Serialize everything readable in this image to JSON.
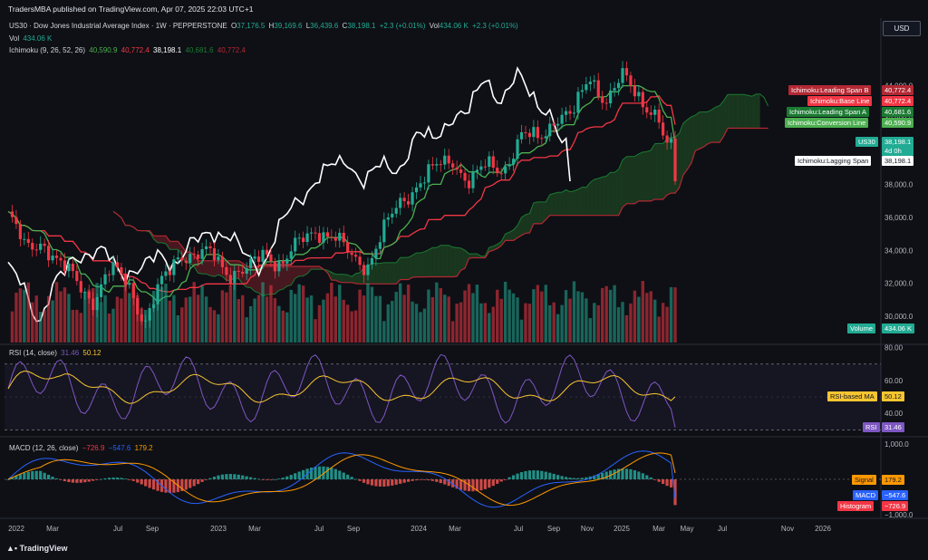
{
  "publisher": "TradersMBA published on TradingView.com, Apr 07, 2025 22:03 UTC+1",
  "currency_button": "USD",
  "footer_brand": "TradingView",
  "header": {
    "symbol": "US30 · Dow Jones Industrial Average Index · 1W · PEPPERSTONE",
    "o_label": "O",
    "o_value": "37,176.5",
    "h_label": "H",
    "h_value": "39,169.6",
    "l_label": "L",
    "l_value": "36,439.6",
    "c_label": "C",
    "c_value": "38,198.1",
    "change": "+2.3 (+0.01%)",
    "vol_label": "Vol",
    "vol_value": "434.06 K",
    "vol_change": "+2.3 (+0.01%)",
    "vol_row_label": "Vol",
    "vol_row_value": "434.06 K",
    "ichimoku_label": "Ichimoku (9, 26, 52, 26)",
    "ichimoku_values": [
      "40,590.9",
      "40,772.4",
      "38,198.1",
      "40,681.6",
      "40,772.4"
    ]
  },
  "price_tags": [
    {
      "label": "Ichimoku:Leading Span B",
      "value": "40,772.4",
      "color": "#b22833"
    },
    {
      "label": "Ichimoku:Base Line",
      "value": "40,772.4",
      "color": "#f23645"
    },
    {
      "label": "Ichimoku:Leading Span A",
      "value": "40,681.6",
      "color": "#1b7a32"
    },
    {
      "label": "Ichimoku:Conversion Line",
      "value": "40,590.9",
      "color": "#4caf50"
    },
    {
      "label": "US30",
      "value": "38,198.1",
      "sub": "4d 0h",
      "color": "#22ab94"
    },
    {
      "label": "Ichimoku:Lagging Span",
      "value": "38,198.1",
      "color": "#ffffff"
    },
    {
      "label": "Volume",
      "value": "434.06 K",
      "color": "#22ab94"
    }
  ],
  "rsi": {
    "label": "RSI (14, close)",
    "value": "31.46",
    "ma_value": "50.12",
    "tag_ma_label": "RSI-based MA",
    "tag_ma_value": "50.12",
    "tag_rsi_label": "RSI",
    "tag_rsi_value": "31.46"
  },
  "macd": {
    "label": "MACD (12, 26, close)",
    "hist_value": "−726.9",
    "macd_value": "−547.6",
    "signal_value": "179.2",
    "tag_signal_label": "Signal",
    "tag_signal_value": "179.2",
    "tag_macd_label": "MACD",
    "tag_macd_value": "−547.6",
    "tag_hist_label": "Histogram",
    "tag_hist_value": "−726.9"
  },
  "colors": {
    "up": "#22ab94",
    "down": "#f23645",
    "lagging": "#ffffff",
    "conversion": "#4caf50",
    "base": "#f23645",
    "rsi": "#7e57c2",
    "rsi_ma": "#f7c530",
    "macd": "#2962ff",
    "signal": "#ff9800"
  },
  "chart_data": {
    "type": "line",
    "title": "US30 · Dow Jones Industrial Average Index · 1W · PEPPERSTONE",
    "x_axis_ticks": [
      "2022",
      "Mar",
      "Jul",
      "Sep",
      "2023",
      "Mar",
      "Jul",
      "Sep",
      "2024",
      "Mar",
      "Jul",
      "Sep",
      "Nov",
      "2025",
      "Mar",
      "May",
      "Jul",
      "Nov",
      "2026"
    ],
    "price_axis_ticks": [
      "44,000.0",
      "42,000.0",
      "40,000.0",
      "38,000.0",
      "36,000.0",
      "34,000.0",
      "32,000.0",
      "30,000.0"
    ],
    "ylim": [
      28400,
      45800
    ],
    "rsi_axis_ticks": [
      "80.00",
      "60.00",
      "40.00"
    ],
    "rsi_ylim": [
      28,
      82
    ],
    "macd_axis_ticks": [
      "1,000.0",
      "0.0",
      "−1,000.0"
    ],
    "macd_ylim": [
      -1100,
      1150
    ],
    "close_series": {
      "name": "US30",
      "x": [
        "2022-01",
        "2022-02",
        "2022-03",
        "2022-04",
        "2022-05",
        "2022-06",
        "2022-07",
        "2022-08",
        "2022-09",
        "2022-10",
        "2022-11",
        "2022-12",
        "2023-01",
        "2023-02",
        "2023-03",
        "2023-04",
        "2023-05",
        "2023-06",
        "2023-07",
        "2023-08",
        "2023-09",
        "2023-10",
        "2023-11",
        "2023-12",
        "2024-01",
        "2024-02",
        "2024-03",
        "2024-04",
        "2024-05",
        "2024-06",
        "2024-07",
        "2024-08",
        "2024-09",
        "2024-10",
        "2024-11",
        "2024-12",
        "2025-01",
        "2025-02",
        "2025-03",
        "2025-04"
      ],
      "values": [
        36200,
        34000,
        34700,
        33000,
        32200,
        31000,
        32700,
        32300,
        29500,
        32000,
        34000,
        33500,
        33800,
        32700,
        32600,
        34000,
        33200,
        34300,
        35400,
        34800,
        33600,
        33200,
        35200,
        37000,
        38200,
        38900,
        39600,
        38100,
        39100,
        39100,
        40800,
        40800,
        42200,
        42000,
        44800,
        43000,
        44500,
        43400,
        41900,
        38198
      ]
    },
    "ichimoku": {
      "settings": [
        9,
        26,
        52,
        26
      ],
      "conversion_last": 40590.9,
      "base_last": 40772.4,
      "leading_span_a_last": 40681.6,
      "leading_span_b_last": 40772.4,
      "lagging_last": 38198.1
    },
    "volume_last": "434.06 K",
    "rsi_series": {
      "name": "RSI",
      "last": 31.46,
      "ma_last": 50.12
    },
    "macd_series": {
      "macd_last": -547.6,
      "signal_last": 179.2,
      "histogram_last": -726.9
    }
  }
}
